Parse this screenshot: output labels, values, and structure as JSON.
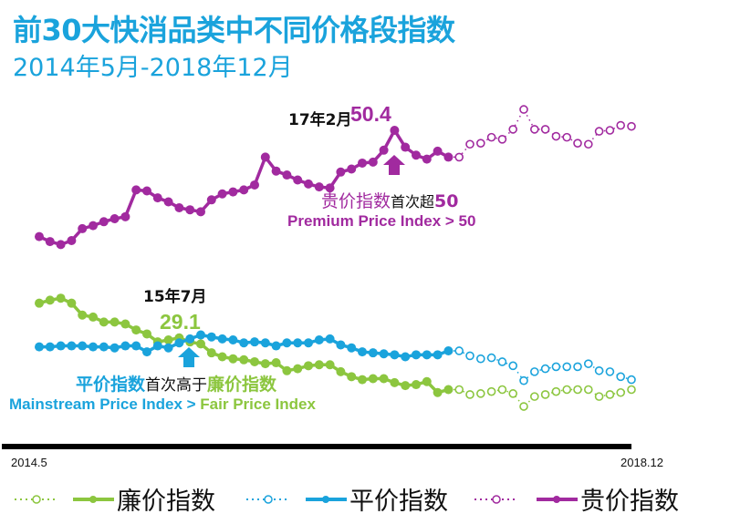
{
  "header": {
    "title": "前30大快消品类中不同价格段指数",
    "subtitle": "2014年5月-2018年12月"
  },
  "annotations": {
    "premium_date": "17年2月",
    "premium_value": "50.4",
    "premium_cn_a": "贵价指数",
    "premium_cn_b": "首次超",
    "premium_cn_c": "50",
    "premium_en": "Premium Price Index > 50",
    "cross_date": "15年7月",
    "cross_value": "29.1",
    "cross_cn_a": "平价指数",
    "cross_cn_b": "首次高于",
    "cross_cn_c": "廉价指数",
    "cross_en_a": "Mainstream Price Index > ",
    "cross_en_b": "Fair Price Index"
  },
  "colors": {
    "fair": "#8cc63f",
    "mainstream": "#1aa3dc",
    "premium": "#a12a9f",
    "title": "#1aa3dc"
  },
  "chart_data": {
    "type": "line",
    "title": "前30大快消品类中不同价格段指数",
    "subtitle": "2014年5月-2018年12月",
    "x_start": "2014.5",
    "x_end": "2018.12",
    "x_tick_labels": [
      "2014.5",
      "2018.12"
    ],
    "actual_points": 39,
    "note": "first 39 months actual (solid), remaining months forecast (dotted)",
    "ylabel": "",
    "grid": false,
    "legend_position": "bottom",
    "legend": [
      "廉价指数",
      "平价指数",
      "贵价指数"
    ],
    "series": [
      {
        "name": "廉价指数",
        "key": "fair",
        "values": [
          33.0,
          33.3,
          33.5,
          33.0,
          31.8,
          31.6,
          31.1,
          31.1,
          30.9,
          30.3,
          29.9,
          29.1,
          29.3,
          29.5,
          29.1,
          28.9,
          28.0,
          27.6,
          27.4,
          27.3,
          27.1,
          26.9,
          27.0,
          26.2,
          26.4,
          26.7,
          26.8,
          26.8,
          26.1,
          25.6,
          25.3,
          25.4,
          25.4,
          25.0,
          24.7,
          24.8,
          25.1,
          24.0,
          24.3,
          24.3,
          23.8,
          23.9,
          24.1,
          24.3,
          23.9,
          22.6,
          23.6,
          23.8,
          24.1,
          24.3,
          24.3,
          24.3,
          23.6,
          23.8,
          24.0,
          24.3
        ]
      },
      {
        "name": "平价指数",
        "key": "mainstream",
        "values": [
          28.6,
          28.6,
          28.7,
          28.7,
          28.7,
          28.6,
          28.6,
          28.5,
          28.7,
          28.7,
          28.1,
          28.7,
          28.5,
          29.0,
          29.4,
          29.8,
          29.6,
          29.4,
          29.3,
          29.0,
          29.1,
          29.0,
          28.7,
          29.0,
          29.0,
          29.0,
          29.3,
          29.4,
          28.8,
          28.5,
          28.1,
          28.0,
          27.9,
          27.8,
          27.6,
          27.8,
          27.8,
          27.8,
          28.2,
          28.2,
          27.7,
          27.4,
          27.5,
          27.1,
          26.7,
          25.2,
          26.1,
          26.4,
          26.6,
          26.6,
          26.6,
          26.9,
          26.2,
          26.1,
          25.6,
          25.3
        ]
      },
      {
        "name": "贵价指数",
        "key": "premium",
        "values": [
          39.7,
          39.2,
          38.9,
          39.3,
          40.5,
          40.8,
          41.2,
          41.5,
          41.7,
          44.4,
          44.3,
          43.6,
          43.2,
          42.6,
          42.4,
          42.2,
          43.4,
          44.0,
          44.2,
          44.4,
          44.9,
          47.7,
          46.3,
          45.9,
          45.4,
          45.0,
          44.7,
          44.6,
          46.2,
          46.5,
          47.1,
          47.2,
          48.4,
          50.4,
          48.7,
          47.9,
          47.5,
          48.3,
          47.7,
          47.7,
          49.0,
          49.1,
          49.7,
          49.5,
          50.5,
          52.5,
          50.5,
          50.5,
          49.8,
          49.7,
          49.1,
          49.0,
          50.3,
          50.4,
          50.9,
          50.8
        ]
      }
    ]
  }
}
